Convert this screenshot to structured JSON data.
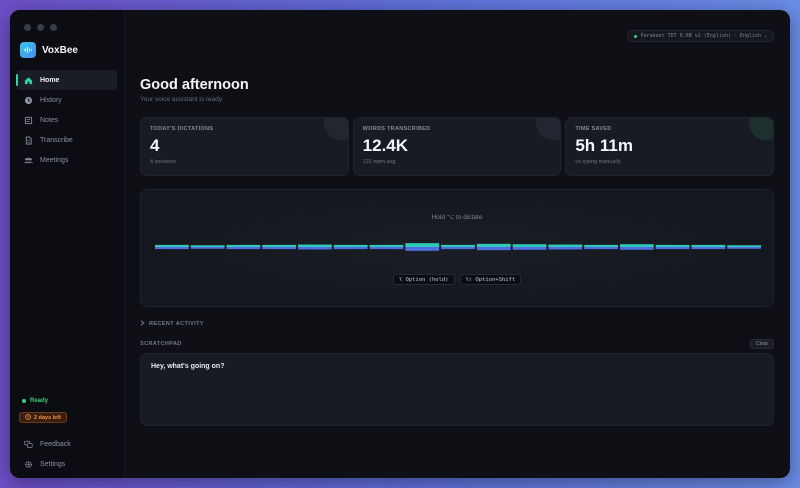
{
  "app": {
    "name": "VoxBee"
  },
  "sidebar": {
    "items": [
      {
        "label": "Home",
        "icon": "home-icon",
        "active": true
      },
      {
        "label": "History",
        "icon": "history-icon"
      },
      {
        "label": "Notes",
        "icon": "notes-icon"
      },
      {
        "label": "Transcribe",
        "icon": "document-icon"
      },
      {
        "label": "Meetings",
        "icon": "people-icon"
      }
    ],
    "status": "Ready",
    "trial": "2 days left",
    "bottom": [
      {
        "label": "Feedback",
        "icon": "feedback-icon"
      },
      {
        "label": "Settings",
        "icon": "gear-icon"
      }
    ]
  },
  "header": {
    "model": "Parakeet TDT 0.6B v2 (English) · English ⌄"
  },
  "main": {
    "greeting": "Good afternoon",
    "subtitle": "Your voice assistant is ready",
    "stats": [
      {
        "label": "TODAY'S DICTATIONS",
        "value": "4",
        "sub": "4 sessions"
      },
      {
        "label": "WORDS TRANSCRIBED",
        "value": "12.4K",
        "sub": "131 wpm avg"
      },
      {
        "label": "TIME SAVED",
        "value": "5h 11m",
        "sub": "vs typing manually"
      }
    ],
    "dictate": {
      "hint": "Hold ⌥ to dictate",
      "shortcut_hold": "⌥ Option (hold)",
      "shortcut_toggle": "⌥⇧ Option+Shift",
      "wave_levels": [
        0.3,
        0.25,
        0.3,
        0.3,
        0.35,
        0.3,
        0.3,
        0.55,
        0.3,
        0.45,
        0.4,
        0.35,
        0.3,
        0.4,
        0.3,
        0.3,
        0.25
      ]
    },
    "recent_activity": "RECENT ACTIVITY",
    "scratchpad": {
      "label": "SCRATCHPAD",
      "clear": "Clear",
      "text": "Hey, what's going on?"
    }
  },
  "colors": {
    "accent": "#2fd3a0",
    "wave_top": "#2ec9b8",
    "wave_bottom": "#4f6de0",
    "ready": "#37d07a",
    "trial": "#f0923e"
  }
}
